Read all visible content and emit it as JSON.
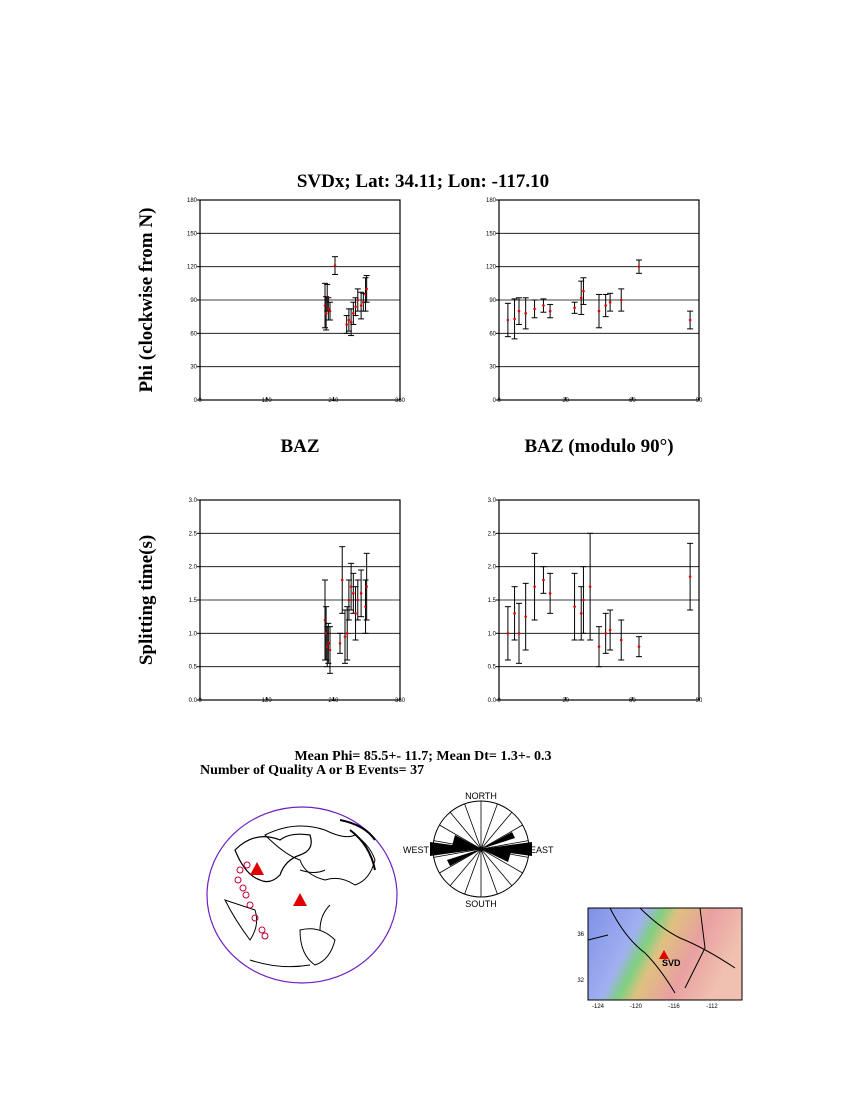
{
  "header": {
    "title": "SVDx; Lat:  34.11;  Lon: -117.10"
  },
  "chart_data": [
    {
      "type": "errorbar",
      "xlabel": "BAZ",
      "ylabel": "Phi (clockwise from N)",
      "x": [
        225,
        227,
        229,
        231,
        234,
        243,
        264,
        268,
        272,
        276,
        280,
        284,
        290,
        294,
        298,
        300
      ],
      "values": [
        85,
        78,
        92,
        82,
        80,
        121,
        68,
        72,
        70,
        78,
        84,
        90,
        85,
        88,
        95,
        100
      ],
      "errors": [
        20,
        15,
        12,
        10,
        8,
        8,
        8,
        10,
        12,
        10,
        8,
        10,
        12,
        8,
        15,
        12
      ],
      "color": "#e00000",
      "error_color": "#000000",
      "xlim": [
        0,
        360
      ],
      "xticks": [
        0,
        120,
        240,
        360
      ],
      "ylim": [
        0,
        180
      ],
      "yticks": [
        0,
        30,
        60,
        90,
        120,
        150,
        180
      ],
      "grid": true
    },
    {
      "type": "errorbar",
      "xlabel": "BAZ (modulo 90°)",
      "x": [
        4,
        7,
        9,
        12,
        16,
        20,
        23,
        34,
        37,
        38,
        45,
        48,
        50,
        55,
        63,
        86
      ],
      "values": [
        72,
        73,
        80,
        78,
        82,
        85,
        80,
        83,
        92,
        98,
        80,
        85,
        88,
        90,
        120,
        72
      ],
      "errors": [
        15,
        18,
        12,
        14,
        8,
        6,
        6,
        5,
        15,
        12,
        15,
        10,
        8,
        10,
        6,
        8
      ],
      "color": "#e00000",
      "error_color": "#000000",
      "xlim": [
        0,
        90
      ],
      "xticks": [
        0,
        30,
        60,
        90
      ],
      "ylim": [
        0,
        180
      ],
      "yticks": [
        0,
        30,
        60,
        90,
        120,
        150,
        180
      ],
      "grid": true
    },
    {
      "type": "errorbar",
      "ylabel": "Splitting time(s)",
      "x": [
        225,
        227,
        229,
        231,
        234,
        252,
        256,
        261,
        265,
        268,
        272,
        276,
        280,
        284,
        290,
        298,
        300
      ],
      "values": [
        1.2,
        1.0,
        0.8,
        0.85,
        0.75,
        0.85,
        1.8,
        0.95,
        1.0,
        1.5,
        1.7,
        1.6,
        1.3,
        1.5,
        1.6,
        1.4,
        1.7
      ],
      "errors": [
        0.6,
        0.4,
        0.3,
        0.3,
        0.35,
        0.15,
        0.5,
        0.4,
        0.4,
        0.3,
        0.35,
        0.3,
        0.4,
        0.3,
        0.35,
        0.4,
        0.5
      ],
      "color": "#e00000",
      "error_color": "#000000",
      "xlim": [
        0,
        360
      ],
      "xticks": [
        0,
        120,
        240,
        360
      ],
      "ylim": [
        0,
        3
      ],
      "yticks": [
        {
          "value": 0,
          "label": "0.0"
        },
        0.5,
        {
          "value": 1,
          "label": "1.0"
        },
        1.5,
        {
          "value": 2,
          "label": "2.0"
        },
        2.5,
        {
          "value": 3,
          "label": "3.0"
        }
      ],
      "grid": true
    },
    {
      "type": "errorbar",
      "x": [
        4,
        7,
        9,
        12,
        16,
        20,
        23,
        34,
        37,
        38,
        41,
        45,
        48,
        50,
        55,
        63,
        86
      ],
      "values": [
        1.0,
        1.3,
        1.0,
        1.25,
        1.7,
        1.8,
        1.6,
        1.4,
        1.3,
        1.5,
        1.7,
        0.8,
        1.0,
        1.05,
        0.9,
        0.8,
        1.85
      ],
      "errors": [
        0.4,
        0.4,
        0.45,
        0.5,
        0.5,
        0.2,
        0.3,
        0.5,
        0.4,
        0.5,
        0.8,
        0.3,
        0.3,
        0.3,
        0.3,
        0.15,
        0.5
      ],
      "color": "#e00000",
      "error_color": "#000000",
      "xlim": [
        0,
        90
      ],
      "xticks": [
        0,
        30,
        60,
        90
      ],
      "ylim": [
        0,
        3
      ],
      "yticks": [
        {
          "value": 0,
          "label": "0.0"
        },
        0.5,
        {
          "value": 1,
          "label": "1.0"
        },
        1.5,
        {
          "value": 2,
          "label": "2.0"
        },
        2.5,
        {
          "value": 3,
          "label": "3.0"
        }
      ],
      "grid": true
    }
  ],
  "stats": {
    "line1": "Mean Phi= 85.5+- 11.7; Mean Dt=  1.3+-  0.3",
    "line2": "Number of Quality A  or B Events= 37"
  },
  "rose": {
    "north": "NORTH",
    "south": "SOUTH",
    "east": "EAST",
    "west": "WEST"
  },
  "map": {
    "station": "SVD",
    "lat_labels": [
      36,
      32
    ],
    "lon_labels": [
      -124,
      -120,
      -116,
      -112
    ]
  }
}
